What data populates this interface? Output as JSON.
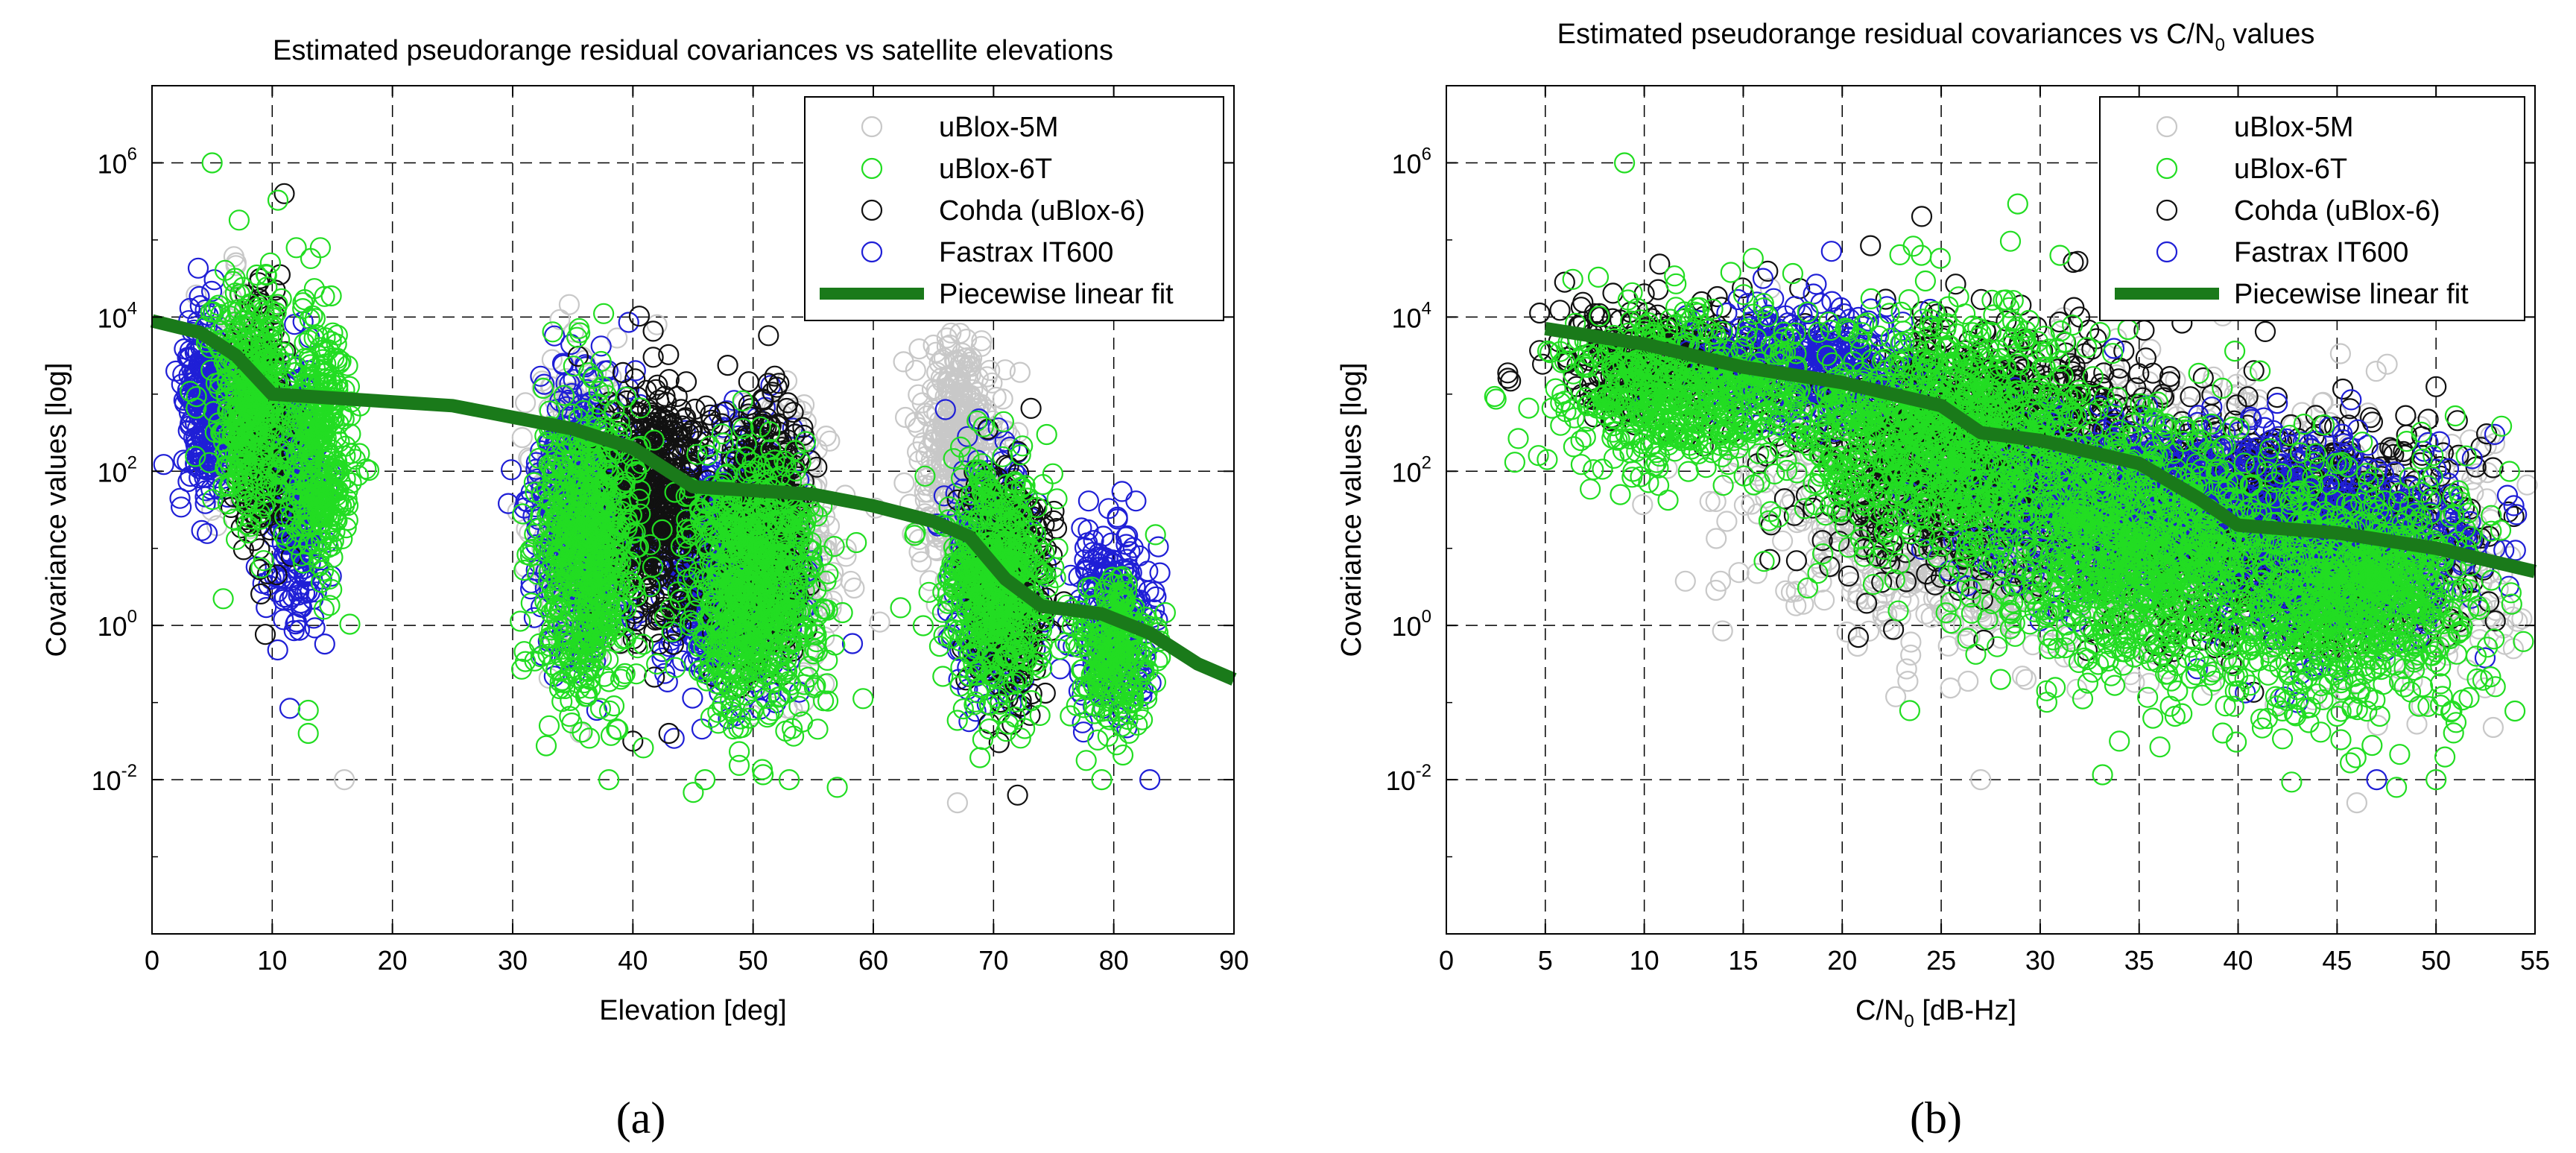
{
  "chart_data": [
    {
      "type": "scatter",
      "panel_label": "(a)",
      "title": "Estimated pseudorange residual covariances vs satellite elevations",
      "xlabel": "Elevation [deg]",
      "ylabel": "Covariance values [log]",
      "xlim": [
        0,
        90
      ],
      "ylim_log10": [
        -4,
        7
      ],
      "xticks": [
        "0",
        "10",
        "20",
        "30",
        "40",
        "50",
        "60",
        "70",
        "80",
        "90"
      ],
      "yticks": [
        {
          "base": "10",
          "exp": "-2",
          "log10": -2
        },
        {
          "base": "10",
          "exp": "0",
          "log10": 0
        },
        {
          "base": "10",
          "exp": "2",
          "log10": 2
        },
        {
          "base": "10",
          "exp": "4",
          "log10": 4
        },
        {
          "base": "10",
          "exp": "6",
          "log10": 6
        }
      ],
      "grid": true,
      "legend_position": "top-right",
      "legend": [
        "uBlox-5M",
        "uBlox-6T",
        "Cohda (uBlox-6)",
        "Fastrax IT600",
        "Piecewise linear fit"
      ],
      "series": [
        {
          "name": "uBlox-5M",
          "color": "#c8c8c8",
          "clusters": [
            {
              "x": 7,
              "spread_x": 2.5,
              "y_log10": 3.0,
              "spread_y": 1.2
            },
            {
              "x": 36,
              "spread_x": 3.5,
              "y_log10": 1.5,
              "spread_y": 1.6
            },
            {
              "x": 52,
              "spread_x": 4,
              "y_log10": 1.0,
              "spread_y": 1.4
            },
            {
              "x": 67,
              "spread_x": 3,
              "y_log10": 2.2,
              "spread_y": 1.4
            }
          ],
          "outliers": [
            [
              16,
              -2.0
            ],
            [
              67,
              -2.3
            ],
            [
              42,
              3.9
            ],
            [
              9,
              4.5
            ]
          ]
        },
        {
          "name": "Fastrax IT600",
          "color": "#1f1fd6",
          "clusters": [
            {
              "x": 4.5,
              "spread_x": 2,
              "y_log10": 2.8,
              "spread_y": 1.3
            },
            {
              "x": 12,
              "spread_x": 2,
              "y_log10": 1.6,
              "spread_y": 1.5
            },
            {
              "x": 36,
              "spread_x": 3.5,
              "y_log10": 1.5,
              "spread_y": 1.6
            },
            {
              "x": 48,
              "spread_x": 5,
              "y_log10": 0.8,
              "spread_y": 1.4
            },
            {
              "x": 70,
              "spread_x": 3,
              "y_log10": 0.7,
              "spread_y": 1.3
            },
            {
              "x": 80,
              "spread_x": 3,
              "y_log10": 0.1,
              "spread_y": 1.0
            }
          ],
          "outliers": [
            [
              83,
              -2.0
            ],
            [
              37,
              -1.1
            ],
            [
              66,
              2.8
            ]
          ]
        },
        {
          "name": "Cohda (uBlox-6)",
          "color": "#111111",
          "clusters": [
            {
              "x": 9,
              "spread_x": 2,
              "y_log10": 2.5,
              "spread_y": 1.4
            },
            {
              "x": 42,
              "spread_x": 4,
              "y_log10": 1.6,
              "spread_y": 1.4
            },
            {
              "x": 51,
              "spread_x": 3,
              "y_log10": 1.3,
              "spread_y": 1.5
            },
            {
              "x": 71,
              "spread_x": 3,
              "y_log10": 0.6,
              "spread_y": 1.3
            }
          ],
          "outliers": [
            [
              11,
              5.6
            ],
            [
              72,
              -2.2
            ],
            [
              43,
              -1.4
            ],
            [
              40,
              -1.5
            ]
          ]
        },
        {
          "name": "uBlox-6T",
          "color": "#22dd22",
          "clusters": [
            {
              "x": 8,
              "spread_x": 3,
              "y_log10": 2.8,
              "spread_y": 1.4
            },
            {
              "x": 14,
              "spread_x": 2.5,
              "y_log10": 2.3,
              "spread_y": 1.5
            },
            {
              "x": 36,
              "spread_x": 4,
              "y_log10": 1.0,
              "spread_y": 1.7
            },
            {
              "x": 50,
              "spread_x": 5,
              "y_log10": 0.5,
              "spread_y": 1.5
            },
            {
              "x": 70,
              "spread_x": 4,
              "y_log10": 0.5,
              "spread_y": 1.4
            },
            {
              "x": 80,
              "spread_x": 3,
              "y_log10": -0.3,
              "spread_y": 0.9
            }
          ],
          "outliers": [
            [
              5,
              6.0
            ],
            [
              13,
              -1.4
            ],
            [
              13,
              -1.1
            ],
            [
              46,
              -2.0
            ],
            [
              53,
              -2.0
            ],
            [
              57,
              -2.1
            ],
            [
              79,
              -2.0
            ],
            [
              14,
              4.9
            ],
            [
              12,
              4.9
            ],
            [
              38,
              -2.0
            ]
          ]
        }
      ],
      "fit": {
        "name": "Piecewise linear fit",
        "color": "#1a7a1a",
        "points": [
          [
            0,
            3.95
          ],
          [
            4,
            3.8
          ],
          [
            7,
            3.5
          ],
          [
            10,
            3.0
          ],
          [
            15,
            2.95
          ],
          [
            25,
            2.85
          ],
          [
            35,
            2.55
          ],
          [
            40,
            2.3
          ],
          [
            45,
            1.8
          ],
          [
            50,
            1.75
          ],
          [
            55,
            1.7
          ],
          [
            60,
            1.55
          ],
          [
            65,
            1.35
          ],
          [
            68,
            1.15
          ],
          [
            71,
            0.6
          ],
          [
            74,
            0.25
          ],
          [
            79,
            0.15
          ],
          [
            83,
            -0.1
          ],
          [
            87,
            -0.5
          ],
          [
            90,
            -0.7
          ]
        ]
      }
    },
    {
      "type": "scatter",
      "panel_label": "(b)",
      "title": "Estimated pseudorange residual covariances vs C/N",
      "title_sub": "0",
      "title_suffix": " values",
      "xlabel": "C/N",
      "xlabel_sub": "0",
      "xlabel_suffix": " [dB-Hz]",
      "ylabel": "Covariance values [log]",
      "xlim": [
        0,
        55
      ],
      "ylim_log10": [
        -4,
        7
      ],
      "xticks": [
        "0",
        "5",
        "10",
        "15",
        "20",
        "25",
        "30",
        "35",
        "40",
        "45",
        "50",
        "55"
      ],
      "yticks": [
        {
          "base": "10",
          "exp": "-2",
          "log10": -2
        },
        {
          "base": "10",
          "exp": "0",
          "log10": 0
        },
        {
          "base": "10",
          "exp": "2",
          "log10": 2
        },
        {
          "base": "10",
          "exp": "4",
          "log10": 4
        },
        {
          "base": "10",
          "exp": "6",
          "log10": 6
        }
      ],
      "grid": true,
      "legend_position": "top-right",
      "legend": [
        "uBlox-5M",
        "uBlox-6T",
        "Cohda (uBlox-6)",
        "Fastrax IT600",
        "Piecewise linear fit"
      ],
      "series": [
        {
          "name": "uBlox-5M",
          "color": "#c8c8c8",
          "clusters": [
            {
              "x": 30,
              "spread_x": 12,
              "y_log10": 1.5,
              "spread_y": 1.5
            },
            {
              "x": 47,
              "spread_x": 6,
              "y_log10": 0.8,
              "spread_y": 1.2
            }
          ],
          "outliers": [
            [
              27,
              -2.0
            ],
            [
              46,
              -2.3
            ],
            [
              10,
              4.0
            ]
          ]
        },
        {
          "name": "Cohda (uBlox-6)",
          "color": "#111111",
          "clusters": [
            {
              "x": 11,
              "spread_x": 5,
              "y_log10": 3.4,
              "spread_y": 0.7
            },
            {
              "x": 27,
              "spread_x": 8,
              "y_log10": 2.3,
              "spread_y": 1.4
            },
            {
              "x": 42,
              "spread_x": 8,
              "y_log10": 1.2,
              "spread_y": 1.2
            }
          ],
          "outliers": [
            [
              10,
              4.3
            ],
            [
              32,
              4.0
            ]
          ]
        },
        {
          "name": "Fastrax IT600",
          "color": "#1f1fd6",
          "clusters": [
            {
              "x": 18,
              "spread_x": 5,
              "y_log10": 3.4,
              "spread_y": 0.7
            },
            {
              "x": 35,
              "spread_x": 8,
              "y_log10": 1.6,
              "spread_y": 1.0
            },
            {
              "x": 45,
              "spread_x": 6,
              "y_log10": 1.0,
              "spread_y": 1.1
            }
          ],
          "outliers": [
            [
              16,
              4.5
            ],
            [
              47,
              -2.0
            ],
            [
              43,
              -1.0
            ]
          ]
        },
        {
          "name": "uBlox-6T",
          "color": "#22dd22",
          "clusters": [
            {
              "x": 12,
              "spread_x": 6,
              "y_log10": 3.0,
              "spread_y": 1.0
            },
            {
              "x": 25,
              "spread_x": 7,
              "y_log10": 2.5,
              "spread_y": 1.4
            },
            {
              "x": 35,
              "spread_x": 7,
              "y_log10": 0.9,
              "spread_y": 1.5
            },
            {
              "x": 46,
              "spread_x": 6,
              "y_log10": 0.4,
              "spread_y": 1.4
            }
          ],
          "outliers": [
            [
              9,
              6.0
            ],
            [
              31,
              4.8
            ],
            [
              24,
              4.8
            ],
            [
              48,
              -2.1
            ],
            [
              50,
              -2.0
            ],
            [
              28,
              -0.7
            ],
            [
              34,
              -1.5
            ]
          ]
        }
      ],
      "fit": {
        "name": "Piecewise linear fit",
        "color": "#1a7a1a",
        "points": [
          [
            5,
            3.85
          ],
          [
            10,
            3.65
          ],
          [
            15,
            3.35
          ],
          [
            20,
            3.15
          ],
          [
            25,
            2.85
          ],
          [
            27,
            2.5
          ],
          [
            30,
            2.4
          ],
          [
            35,
            2.1
          ],
          [
            38,
            1.65
          ],
          [
            40,
            1.3
          ],
          [
            45,
            1.2
          ],
          [
            50,
            1.0
          ],
          [
            55,
            0.7
          ]
        ]
      }
    }
  ]
}
